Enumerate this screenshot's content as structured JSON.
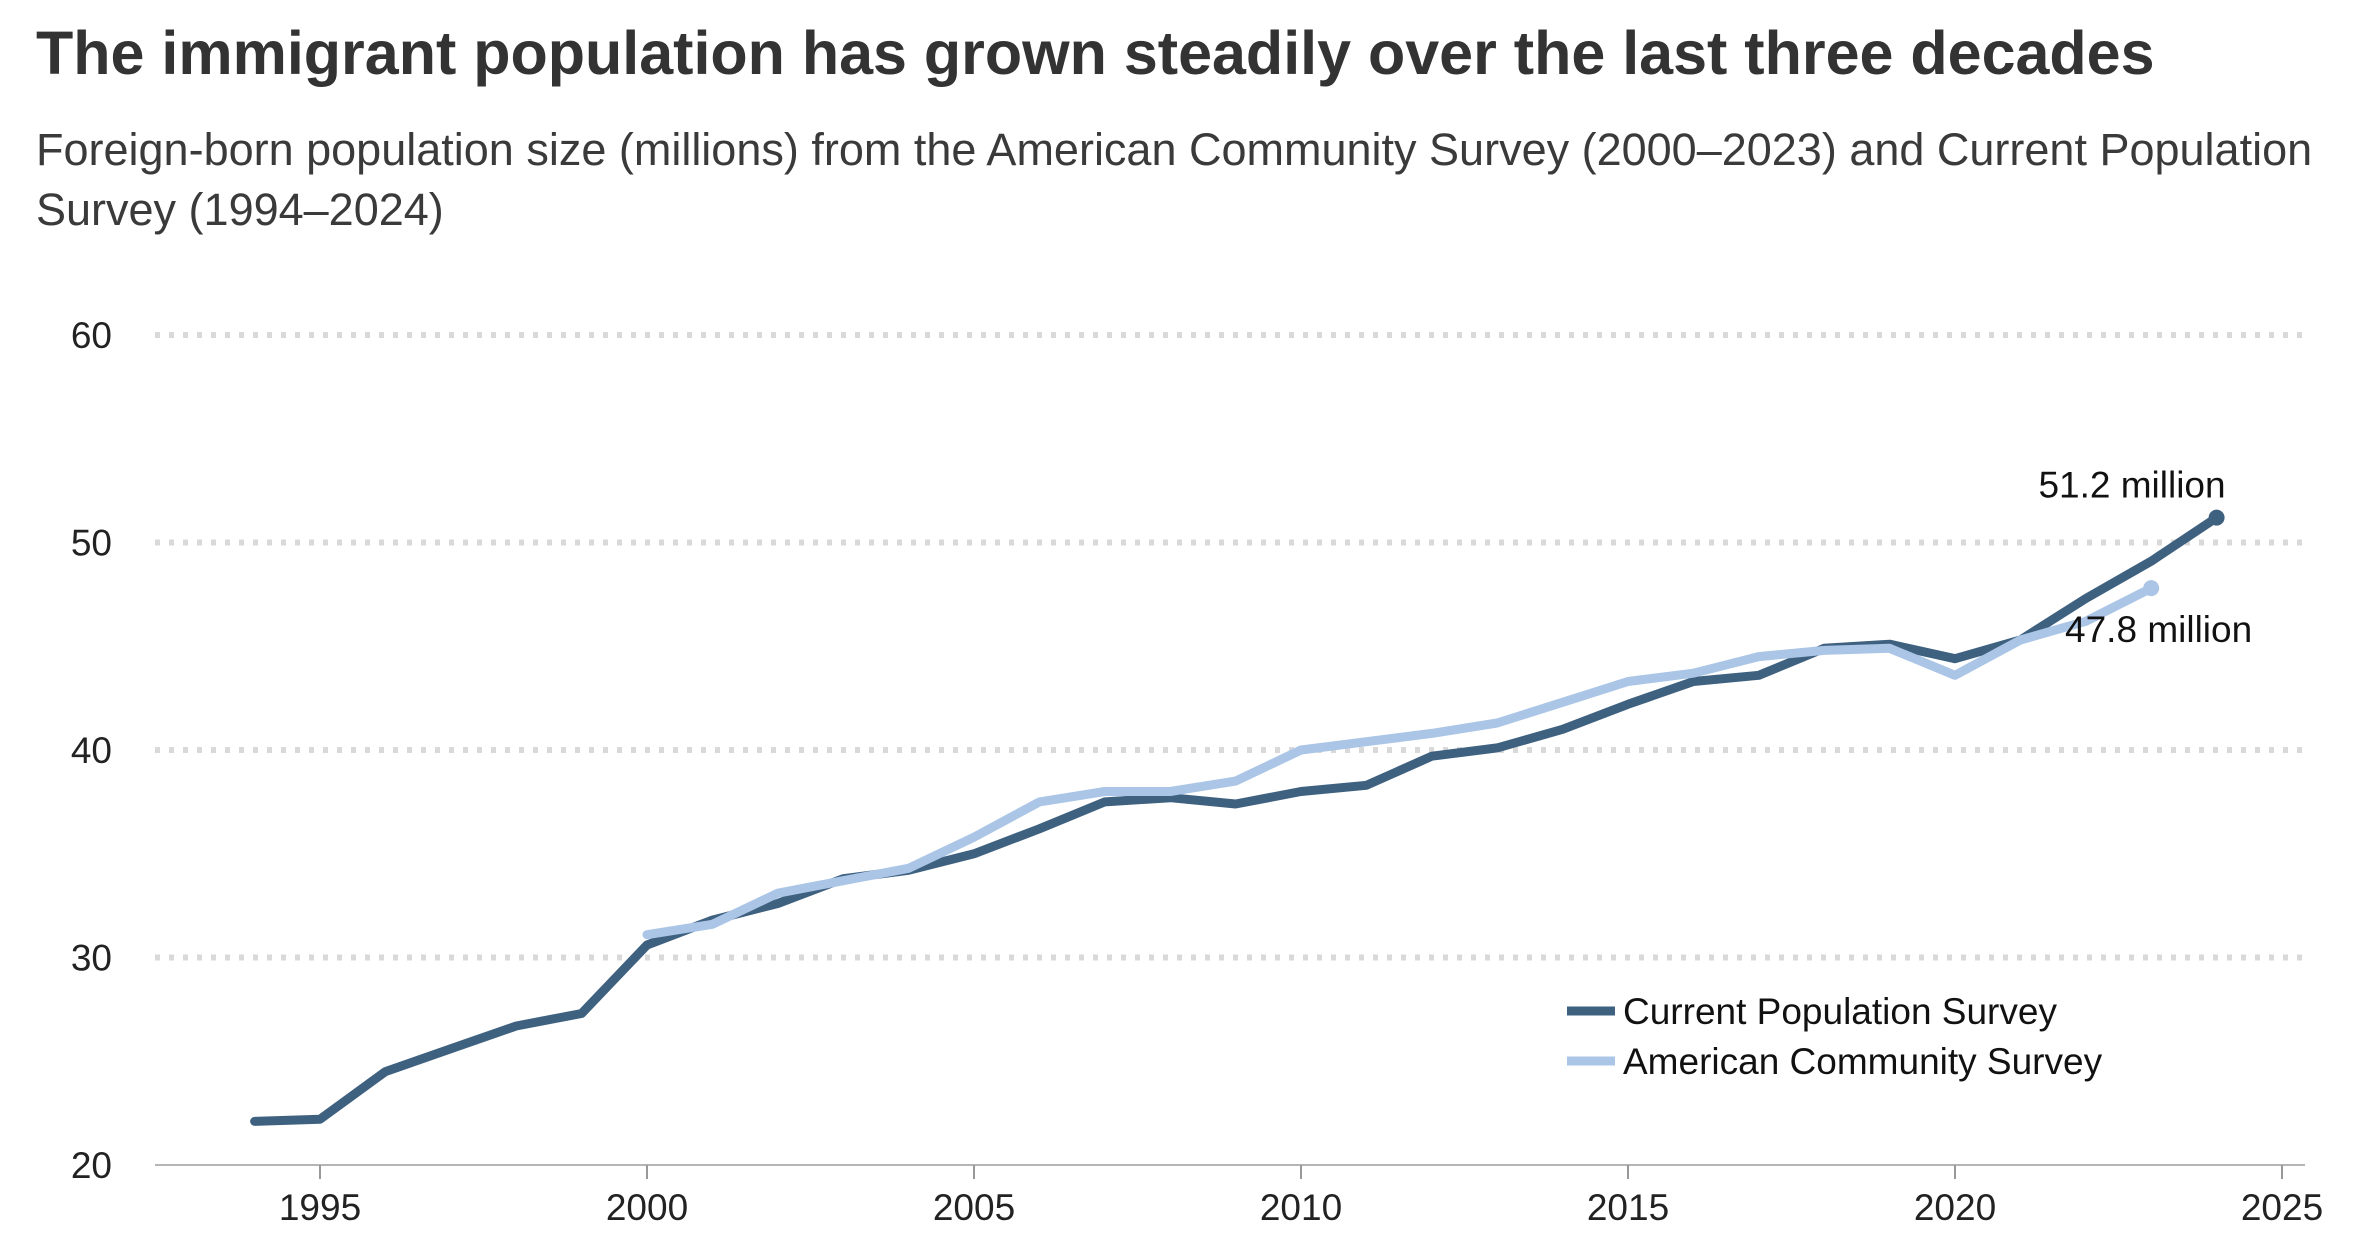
{
  "chart_data": {
    "type": "line",
    "title": "The immigrant population has grown steadily over the last three decades",
    "subtitle": "Foreign-born population size (millions) from the American Community Survey (2000–2023) and Current Population Survey (1994–2024)",
    "xlabel": "",
    "ylabel": "",
    "xlim": [
      1990,
      2025.5
    ],
    "ylim": [
      20,
      60
    ],
    "x_ticks": [
      1995,
      2000,
      2005,
      2010,
      2015,
      2020,
      2025
    ],
    "y_ticks": [
      20,
      30,
      40,
      50,
      60
    ],
    "grid": "horizontal dotted",
    "legend_position": "bottom-right",
    "series": [
      {
        "name": "Current Population Survey",
        "color": "#3f6180",
        "x": [
          1994,
          1995,
          1996,
          1997,
          1998,
          1999,
          2000,
          2001,
          2002,
          2003,
          2004,
          2005,
          2006,
          2007,
          2008,
          2009,
          2010,
          2011,
          2012,
          2013,
          2014,
          2015,
          2016,
          2017,
          2018,
          2019,
          2020,
          2021,
          2022,
          2023,
          2024
        ],
        "values": [
          22.1,
          22.2,
          24.5,
          25.6,
          26.7,
          27.3,
          30.6,
          31.8,
          32.6,
          33.8,
          34.2,
          35.0,
          36.2,
          37.5,
          37.7,
          37.4,
          38.0,
          38.3,
          39.7,
          40.1,
          41.0,
          42.2,
          43.3,
          43.6,
          44.9,
          45.1,
          44.4,
          45.3,
          47.3,
          49.1,
          51.2
        ],
        "end_label": "51.2 million"
      },
      {
        "name": "American Community Survey",
        "color": "#aac5e6",
        "x": [
          2000,
          2001,
          2002,
          2003,
          2004,
          2005,
          2006,
          2007,
          2008,
          2009,
          2010,
          2011,
          2012,
          2013,
          2014,
          2015,
          2016,
          2017,
          2018,
          2019,
          2020,
          2021,
          2022,
          2023
        ],
        "values": [
          31.1,
          31.6,
          33.1,
          33.7,
          34.3,
          35.8,
          37.5,
          38.0,
          38.0,
          38.5,
          40.0,
          40.4,
          40.8,
          41.3,
          42.3,
          43.3,
          43.7,
          44.5,
          44.8,
          44.9,
          43.6,
          45.3,
          46.2,
          47.8
        ],
        "end_label": "47.8 million"
      }
    ]
  }
}
